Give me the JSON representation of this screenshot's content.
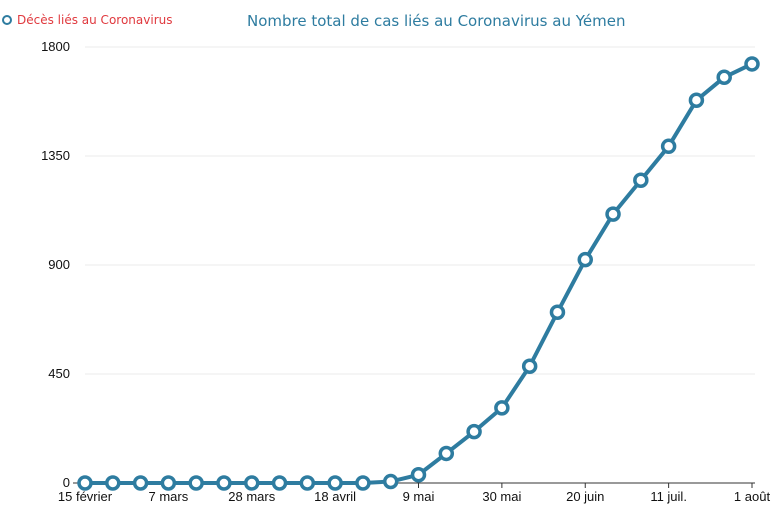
{
  "legend": {
    "label": "Décès liés au Coronavirus",
    "marker_color": "#2e7ca0",
    "text_color": "#e0393e"
  },
  "chart_data": {
    "type": "line",
    "title": "Nombre total de cas liés au Coronavirus au Yémen",
    "xlabel": "",
    "ylabel": "",
    "ylim": [
      0,
      1800
    ],
    "yticks": [
      0,
      450,
      900,
      1350,
      1800
    ],
    "grid": true,
    "legend_position": "top-left",
    "x_tick_labels": [
      {
        "label": "15 février",
        "index": 0
      },
      {
        "label": "7 mars",
        "index": 3
      },
      {
        "label": "28 mars",
        "index": 6
      },
      {
        "label": "18 avril",
        "index": 9
      },
      {
        "label": "9 mai",
        "index": 12
      },
      {
        "label": "30 mai",
        "index": 15
      },
      {
        "label": "20 juin",
        "index": 18
      },
      {
        "label": "11 juil.",
        "index": 21
      },
      {
        "label": "1 août",
        "index": 24
      }
    ],
    "x": [
      "15 février",
      "22 février",
      "29 février",
      "7 mars",
      "14 mars",
      "21 mars",
      "28 mars",
      "4 avril",
      "11 avril",
      "18 avril",
      "25 avril",
      "2 mai",
      "9 mai",
      "16 mai",
      "23 mai",
      "30 mai",
      "6 juin",
      "13 juin",
      "20 juin",
      "27 juin",
      "4 juil.",
      "11 juil.",
      "18 juil.",
      "25 juil.",
      "1 août"
    ],
    "series": [
      {
        "color": "#2e7ca0",
        "values": [
          0,
          0,
          0,
          0,
          0,
          0,
          0,
          0,
          0,
          0,
          0,
          6,
          34,
          122,
          212,
          310,
          482,
          705,
          922,
          1110,
          1250,
          1390,
          1580,
          1675,
          1730
        ]
      }
    ]
  }
}
